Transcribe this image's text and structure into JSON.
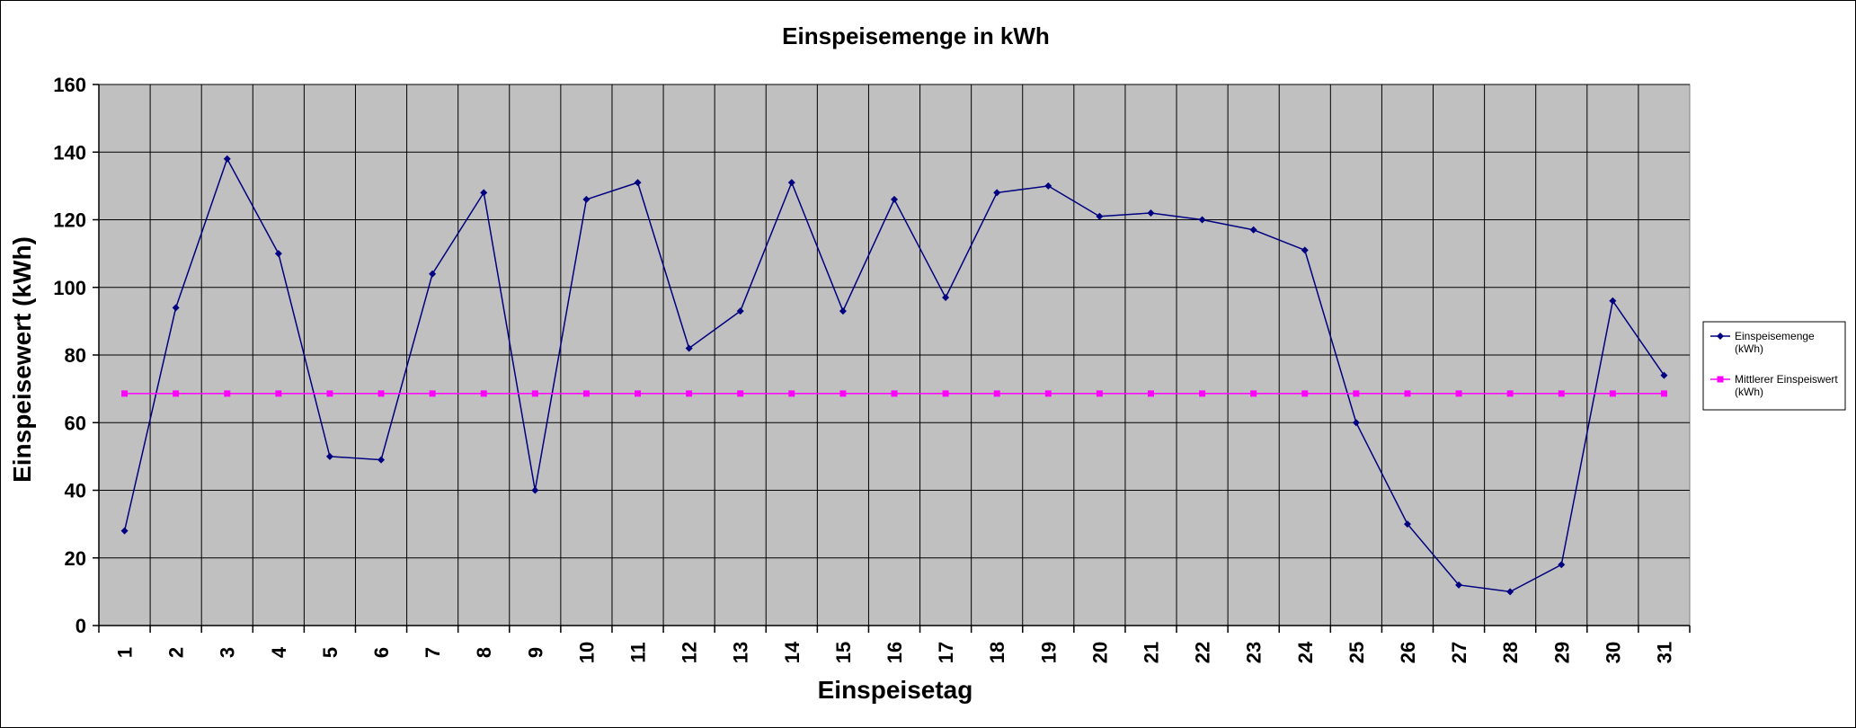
{
  "chart_data": {
    "type": "line",
    "title": "Einspeisemenge in kWh",
    "xlabel": "Einspeisetag",
    "ylabel": "Einspeisewert  (kWh)",
    "ylim": [
      0,
      160
    ],
    "yticks": [
      0,
      20,
      40,
      60,
      80,
      100,
      120,
      140,
      160
    ],
    "categories": [
      "1",
      "2",
      "3",
      "4",
      "5",
      "6",
      "7",
      "8",
      "9",
      "10",
      "11",
      "12",
      "13",
      "14",
      "15",
      "16",
      "17",
      "18",
      "19",
      "20",
      "21",
      "22",
      "23",
      "24",
      "25",
      "26",
      "27",
      "28",
      "29",
      "30",
      "31"
    ],
    "grid": true,
    "legend_position": "right",
    "plot_background": "#c0c0c0",
    "series": [
      {
        "legend_lines": [
          "Einspeisemenge",
          "(kWh)"
        ],
        "color": "#000080",
        "marker": "diamond",
        "values": [
          28,
          94,
          138,
          110,
          50,
          49,
          104,
          128,
          40,
          126,
          131,
          82,
          93,
          131,
          93,
          126,
          97,
          128,
          130,
          121,
          122,
          120,
          117,
          111,
          60,
          30,
          12,
          10,
          18,
          96,
          74
        ]
      },
      {
        "legend_lines": [
          "Mittlerer Einspeiswert",
          "(kWh)"
        ],
        "color": "#ff00ff",
        "marker": "square",
        "values": [
          68.6,
          68.6,
          68.6,
          68.6,
          68.6,
          68.6,
          68.6,
          68.6,
          68.6,
          68.6,
          68.6,
          68.6,
          68.6,
          68.6,
          68.6,
          68.6,
          68.6,
          68.6,
          68.6,
          68.6,
          68.6,
          68.6,
          68.6,
          68.6,
          68.6,
          68.6,
          68.6,
          68.6,
          68.6,
          68.6,
          68.6
        ]
      }
    ]
  }
}
